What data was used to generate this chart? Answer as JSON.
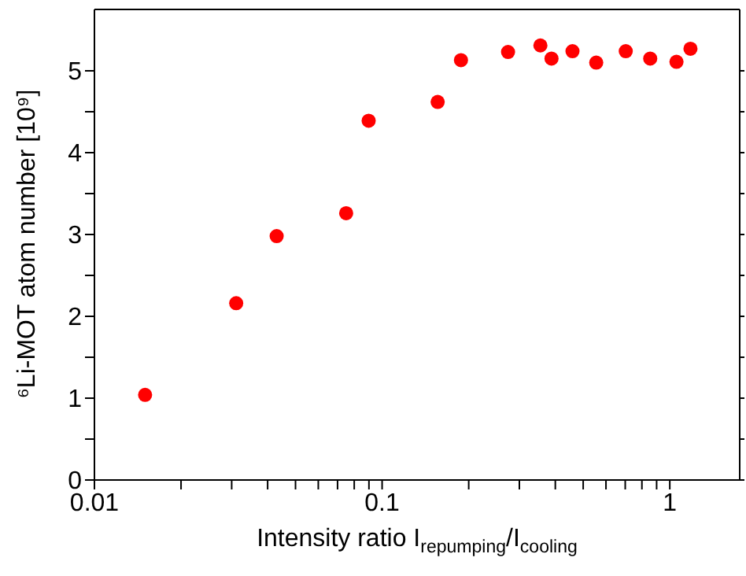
{
  "chart_data": {
    "type": "scatter",
    "xlabel": "Intensity ratio I$_{repumping}$/I$_{cooling}$",
    "ylabel": "⁶Li-MOT atom number [10⁹]",
    "x": [
      0.015,
      0.0311,
      0.043,
      0.075,
      0.0898,
      0.156,
      0.188,
      0.274,
      0.355,
      0.388,
      0.459,
      0.555,
      0.703,
      0.855,
      1.055,
      1.18
    ],
    "series": [
      {
        "color": "#ff0000",
        "values": [
          1.04,
          2.16,
          2.98,
          3.26,
          4.39,
          4.62,
          5.13,
          5.23,
          5.31,
          5.15,
          5.24,
          5.1,
          5.24,
          5.15,
          5.11,
          5.27
        ]
      }
    ],
    "log": "x",
    "xlim": [
      0.01,
      1.75
    ],
    "xticks": [
      0.01,
      {
        "value": 0.02,
        "label": null
      },
      {
        "value": 0.03,
        "label": null
      },
      {
        "value": 0.04,
        "label": null
      },
      {
        "value": 0.05,
        "label": null
      },
      {
        "value": 0.06,
        "label": null
      },
      {
        "value": 0.07,
        "label": null
      },
      {
        "value": 0.08,
        "label": null
      },
      {
        "value": 0.09,
        "label": null
      },
      0.1,
      {
        "value": 0.2,
        "label": null
      },
      {
        "value": 0.3,
        "label": null
      },
      {
        "value": 0.4,
        "label": null
      },
      {
        "value": 0.5,
        "label": null
      },
      {
        "value": 0.6,
        "label": null
      },
      {
        "value": 0.7,
        "label": null
      },
      {
        "value": 0.8,
        "label": null
      },
      {
        "value": 0.9,
        "label": null
      },
      1
    ],
    "ylim": [
      0,
      5.75
    ],
    "yticks": [
      0,
      {
        "value": 0.5,
        "label": null
      },
      1,
      {
        "value": 1.5,
        "label": null
      },
      2,
      {
        "value": 2.5,
        "label": null
      },
      3,
      {
        "value": 3.5,
        "label": null
      },
      4,
      {
        "value": 4.5,
        "label": null
      },
      5
    ],
    "marker": "circle"
  }
}
